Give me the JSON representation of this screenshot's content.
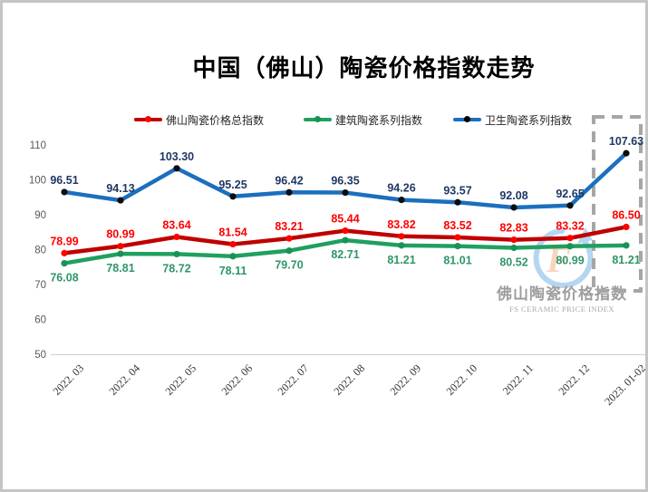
{
  "title": "中国（佛山）陶瓷价格指数走势",
  "legend": {
    "items": [
      {
        "label": "佛山陶瓷价格总指数",
        "line_color": "#c00000",
        "dot_color": "#ff0000"
      },
      {
        "label": "建筑陶瓷系列指数",
        "line_color": "#1fa05f",
        "dot_color": "#1a9156"
      },
      {
        "label": "卫生陶瓷系列指数",
        "line_color": "#1b6fbe",
        "dot_color": "#000000"
      }
    ]
  },
  "watermark": {
    "logo_icon": "fs-logo-icon",
    "line1": "佛山陶瓷价格指数",
    "line2": "FS CERAMIC PRICE INDEX"
  },
  "chart_data": {
    "type": "line",
    "title": "中国（佛山）陶瓷价格指数走势",
    "categories": [
      "2022. 03",
      "2022. 04",
      "2022. 05",
      "2022. 06",
      "2022. 07",
      "2022. 08",
      "2022. 09",
      "2022. 10",
      "2022. 11",
      "2022. 12",
      "2023. 01-02"
    ],
    "series": [
      {
        "name": "佛山陶瓷价格总指数",
        "values": [
          78.99,
          80.99,
          83.64,
          81.54,
          83.21,
          85.44,
          83.82,
          83.52,
          82.83,
          83.32,
          86.5
        ],
        "line_color": "#c00000",
        "marker_color": "#ff0000",
        "label_color": "#ff0000",
        "label_position": "above"
      },
      {
        "name": "建筑陶瓷系列指数",
        "values": [
          76.08,
          78.81,
          78.72,
          78.11,
          79.7,
          82.71,
          81.21,
          81.01,
          80.52,
          80.99,
          81.21
        ],
        "line_color": "#1fa05f",
        "marker_color": "#1a9156",
        "label_color": "#2e9668",
        "label_position": "below"
      },
      {
        "name": "卫生陶瓷系列指数",
        "values": [
          96.51,
          94.13,
          103.3,
          95.25,
          96.42,
          96.35,
          94.26,
          93.57,
          92.08,
          92.65,
          107.63
        ],
        "line_color": "#1b6fbe",
        "marker_color": "#0d0d0d",
        "label_color": "#1f3864",
        "label_position": "above"
      }
    ],
    "xlabel": "",
    "ylabel": "",
    "y_axis": {
      "min": 50,
      "max": 110,
      "step": 10,
      "ticks": [
        110,
        100,
        90,
        80,
        70,
        60,
        50
      ]
    },
    "grid": false,
    "legend_position": "top",
    "value_label_decimals": 2,
    "highlight_last_category": true,
    "highlight_box_color": "#a6a6a6"
  }
}
